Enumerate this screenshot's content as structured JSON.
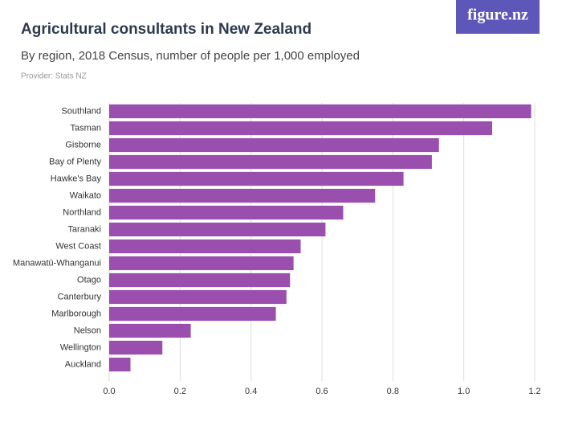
{
  "logo": "figure.nz",
  "chart_data": {
    "type": "bar",
    "orientation": "horizontal",
    "title": "Agricultural consultants in New Zealand",
    "subtitle": "By region, 2018 Census, number of people per 1,000 employed",
    "provider": "Provider: Stats NZ",
    "categories": [
      "Southland",
      "Tasman",
      "Gisborne",
      "Bay of Plenty",
      "Hawke's Bay",
      "Waikato",
      "Northland",
      "Taranaki",
      "West Coast",
      "Manawatū-Whanganui",
      "Otago",
      "Canterbury",
      "Marlborough",
      "Nelson",
      "Wellington",
      "Auckland"
    ],
    "values": [
      1.19,
      1.08,
      0.93,
      0.91,
      0.83,
      0.75,
      0.66,
      0.61,
      0.54,
      0.52,
      0.51,
      0.5,
      0.47,
      0.23,
      0.15,
      0.06
    ],
    "color": "#9a4fae",
    "xlim": [
      0,
      1.2
    ],
    "xticks": [
      {
        "value": 0,
        "label": "0.0"
      },
      0.2,
      0.4,
      0.6,
      0.8,
      {
        "value": 1,
        "label": "1.0"
      },
      1.2
    ],
    "grid": true
  }
}
